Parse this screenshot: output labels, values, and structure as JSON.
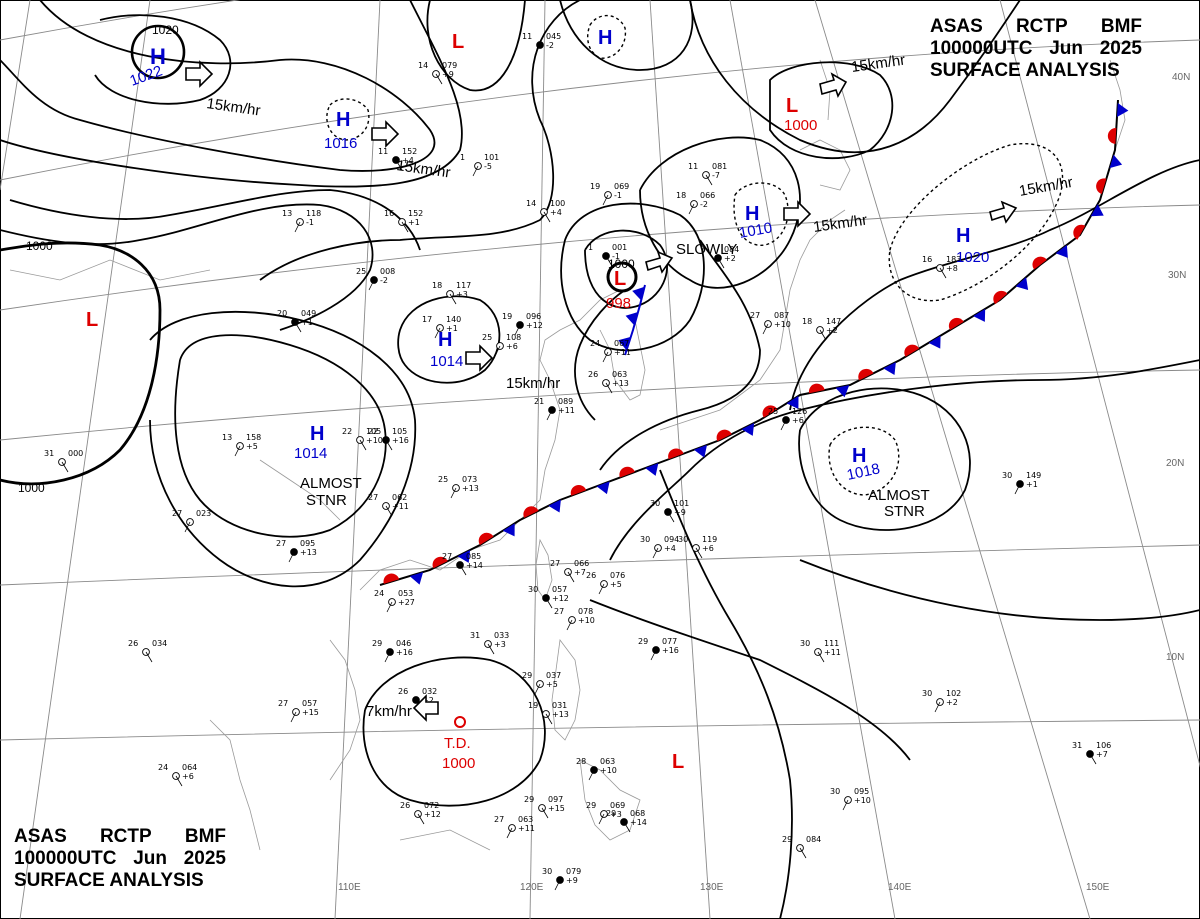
{
  "header": {
    "line1": [
      "ASAS",
      "RCTP",
      "BMF"
    ],
    "line2": [
      "100000UTC",
      "Jun",
      "2025"
    ],
    "line3": "SURFACE ANALYSIS"
  },
  "colors": {
    "high": "#0000cc",
    "low": "#dd0000",
    "cold_front": "#0000cc",
    "warm_front": "#dd0000",
    "isobar": "#000000",
    "grid": "#888888",
    "coast": "#999999"
  },
  "isobar_labels": {
    "1000_west_top": "1000",
    "1000_west_bottom": "1000",
    "1020_north": "1020",
    "1000_east_low": "1000"
  },
  "systems": [
    {
      "id": "h-1022",
      "type": "H",
      "value": "1022",
      "motion": "15km/hr"
    },
    {
      "id": "h-1016",
      "type": "H",
      "value": "1016",
      "motion": "15km/hr"
    },
    {
      "id": "l-north",
      "type": "L",
      "value": ""
    },
    {
      "id": "h-north-dotted",
      "type": "H",
      "value": ""
    },
    {
      "id": "l-1000-ne",
      "type": "L",
      "value": "1000",
      "motion": "15km/hr"
    },
    {
      "id": "h-1010",
      "type": "H",
      "value": "1010",
      "motion": "15km/hr"
    },
    {
      "id": "h-1020",
      "type": "H",
      "value": "1020",
      "motion": "15km/hr"
    },
    {
      "id": "l-998",
      "type": "L",
      "value": "998",
      "motion": "SLOWLY"
    },
    {
      "id": "h-1014-center",
      "type": "H",
      "value": "1014",
      "motion": "15km/hr"
    },
    {
      "id": "l-west",
      "type": "L",
      "value": ""
    },
    {
      "id": "h-1014-south",
      "type": "H",
      "value": "1014",
      "motion": "ALMOST STNR"
    },
    {
      "id": "h-1018",
      "type": "H",
      "value": "1018",
      "motion": "ALMOST STNR"
    },
    {
      "id": "td-1000",
      "type": "T.D.",
      "value": "1000",
      "motion": "7km/hr"
    },
    {
      "id": "l-south",
      "type": "L",
      "value": ""
    }
  ],
  "latitude_labels": [
    "40N",
    "30N",
    "20N",
    "10N"
  ],
  "longitude_labels": [
    "110E",
    "120E",
    "130E",
    "140E",
    "150E"
  ],
  "stations": [
    {
      "p": "045",
      "t": "11",
      "d": "-2"
    },
    {
      "p": "079",
      "t": "14",
      "d": "+9"
    },
    {
      "p": "101",
      "t": "1",
      "d": "-5"
    },
    {
      "p": "152",
      "t": "11",
      "d": "+4"
    },
    {
      "p": "118",
      "t": "13",
      "d": "-1"
    },
    {
      "p": "152",
      "t": "16",
      "d": "+1"
    },
    {
      "p": "008",
      "t": "25",
      "d": "-2"
    },
    {
      "p": "117",
      "t": "18",
      "d": "+3"
    },
    {
      "p": "140",
      "t": "17",
      "d": "+1"
    },
    {
      "p": "049",
      "t": "20",
      "d": "+1"
    },
    {
      "p": "108",
      "t": "25",
      "d": "+6"
    },
    {
      "p": "105",
      "t": "22",
      "d": "+10"
    },
    {
      "p": "096",
      "t": "19",
      "d": "+12"
    },
    {
      "p": "100",
      "t": "14",
      "d": "+4"
    },
    {
      "p": "069",
      "t": "19",
      "d": "-1"
    },
    {
      "p": "001",
      "t": "1",
      "d": "-1"
    },
    {
      "p": "067",
      "t": "24",
      "d": "+11"
    },
    {
      "p": "063",
      "t": "26",
      "d": "+13"
    },
    {
      "p": "089",
      "t": "21",
      "d": "+11"
    },
    {
      "p": "081",
      "t": "11",
      "d": "-7"
    },
    {
      "p": "066",
      "t": "18",
      "d": "-2"
    },
    {
      "p": "084",
      "t": "7",
      "d": "+2"
    },
    {
      "p": "087",
      "t": "27",
      "d": "+10"
    },
    {
      "p": "147",
      "t": "18",
      "d": "+2"
    },
    {
      "p": "126",
      "t": "25",
      "d": "+6"
    },
    {
      "p": "183",
      "t": "16",
      "d": "+8"
    },
    {
      "p": "158",
      "t": "13",
      "d": "+5"
    },
    {
      "p": "105",
      "t": "22",
      "d": "+16"
    },
    {
      "p": "073",
      "t": "25",
      "d": "+13"
    },
    {
      "p": "062",
      "t": "27",
      "d": "+11"
    },
    {
      "p": "095",
      "t": "27",
      "d": "+13"
    },
    {
      "p": "000",
      "t": "31",
      "d": ""
    },
    {
      "p": "023",
      "t": "27",
      "d": ""
    },
    {
      "p": "101",
      "t": "30",
      "d": "+9"
    },
    {
      "p": "094",
      "t": "30",
      "d": "+4"
    },
    {
      "p": "119",
      "t": "30",
      "d": "+6"
    },
    {
      "p": "149",
      "t": "30",
      "d": "+1"
    },
    {
      "p": "066",
      "t": "27",
      "d": "+7"
    },
    {
      "p": "076",
      "t": "26",
      "d": "+5"
    },
    {
      "p": "057",
      "t": "30",
      "d": "+12"
    },
    {
      "p": "078",
      "t": "27",
      "d": "+10"
    },
    {
      "p": "033",
      "t": "31",
      "d": "+3"
    },
    {
      "p": "046",
      "t": "29",
      "d": "+16"
    },
    {
      "p": "034",
      "t": "26",
      "d": ""
    },
    {
      "p": "057",
      "t": "27",
      "d": "+15"
    },
    {
      "p": "032",
      "t": "26",
      "d": "+2"
    },
    {
      "p": "037",
      "t": "29",
      "d": "+5"
    },
    {
      "p": "031",
      "t": "19",
      "d": "+13"
    },
    {
      "p": "077",
      "t": "29",
      "d": "+16"
    },
    {
      "p": "111",
      "t": "30",
      "d": "+11"
    },
    {
      "p": "102",
      "t": "30",
      "d": "+2"
    },
    {
      "p": "106",
      "t": "31",
      "d": "+7"
    },
    {
      "p": "095",
      "t": "30",
      "d": "+10"
    },
    {
      "p": "084",
      "t": "29",
      "d": ""
    },
    {
      "p": "063",
      "t": "28",
      "d": "+10"
    },
    {
      "p": "097",
      "t": "29",
      "d": "+15"
    },
    {
      "p": "069",
      "t": "29",
      "d": "+3"
    },
    {
      "p": "068",
      "t": "29",
      "d": "+14"
    },
    {
      "p": "063",
      "t": "27",
      "d": "+11"
    },
    {
      "p": "072",
      "t": "26",
      "d": "+12"
    },
    {
      "p": "079",
      "t": "30",
      "d": "+9"
    },
    {
      "p": "064",
      "t": "24",
      "d": "+6"
    },
    {
      "p": "053",
      "t": "24",
      "d": "+27"
    },
    {
      "p": "085",
      "t": "27",
      "d": "+14"
    }
  ]
}
